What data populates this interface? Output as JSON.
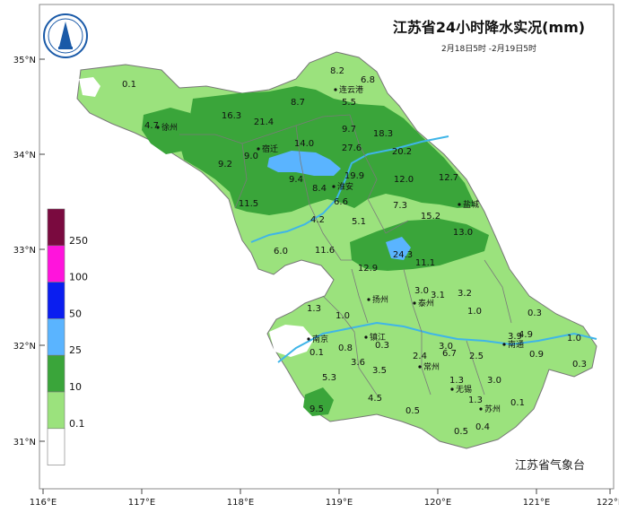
{
  "title": "江苏省24小时降水实况(mm)",
  "subtitle": "2月18日5时 -2月19日5时",
  "agency": "江苏省气象台",
  "lat_labels": [
    "35°N",
    "34°N",
    "33°N",
    "32°N",
    "31°N"
  ],
  "lon_labels": [
    "116°E",
    "117°E",
    "118°E",
    "119°E",
    "120°E",
    "121°E",
    "122°E"
  ],
  "legend": {
    "labels": [
      "250",
      "100",
      "50",
      "25",
      "10",
      "0.1"
    ],
    "colors": [
      "#7a0a3f",
      "#ff14dc",
      "#0a1ef0",
      "#5ab4ff",
      "#3aa53a",
      "#9be27d",
      "#ffffff"
    ]
  },
  "cities": [
    {
      "name": "连云港"
    },
    {
      "name": "徐州"
    },
    {
      "name": "宿迁"
    },
    {
      "name": "淮安"
    },
    {
      "name": "盐城"
    },
    {
      "name": "扬州"
    },
    {
      "name": "泰州"
    },
    {
      "name": "南京"
    },
    {
      "name": "镇江"
    },
    {
      "name": "南通"
    },
    {
      "name": "常州"
    },
    {
      "name": "无锡"
    },
    {
      "name": "苏州"
    }
  ],
  "values": [
    "0.1",
    "4.7",
    "16.3",
    "21.4",
    "8.7",
    "8.2",
    "6.8",
    "5.5",
    "9.0",
    "9.2",
    "14.0",
    "9.7",
    "27.6",
    "18.3",
    "20.2",
    "9.4",
    "8.4",
    "19.9",
    "12.0",
    "12.7",
    "11.5",
    "6.6",
    "7.3",
    "15.2",
    "4.2",
    "5.1",
    "13.0",
    "6.0",
    "11.6",
    "24.3",
    "11.1",
    "12.9",
    "1.3",
    "1.0",
    "3.0",
    "3.1",
    "3.2",
    "1.0",
    "0.3",
    "0.1",
    "0.8",
    "0.3",
    "3.0",
    "3.9",
    "4.9",
    "1.0",
    "3.6",
    "2.4",
    "6.7",
    "2.5",
    "0.9",
    "0.3",
    "5.3",
    "3.5",
    "1.3",
    "3.0",
    "4.5",
    "1.3",
    "0.1",
    "9.5",
    "0.5",
    "0.4",
    "0.5"
  ]
}
